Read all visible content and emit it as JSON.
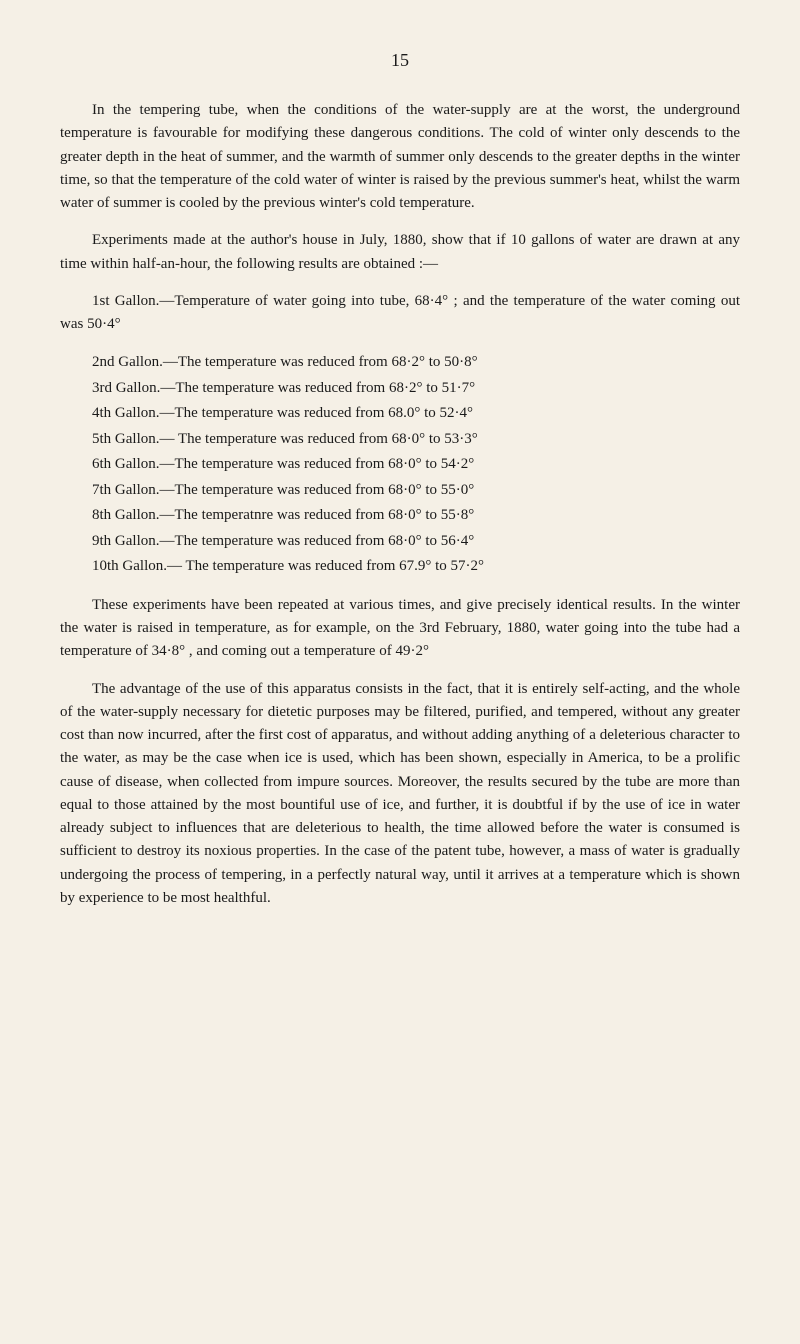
{
  "page_number": "15",
  "para1": "In the tempering tube, when the conditions of the water-supply are at the worst, the underground temperature is favourable for modifying these dangerous conditions. The cold of winter only descends to the greater depth in the heat of summer, and the warmth of summer only descends to the greater depths in the winter time, so that the tempera­ture of the cold water of winter is raised by the previous summer's heat, whilst the warm water of summer is cooled by the previous winter's cold temperature.",
  "para2": "Experiments made at the author's house in July, 1880, show that if 10 gallons of water are drawn at any time within half-an-hour, the following results are obtained :—",
  "para3": "1st Gallon.—Temperature of water going into tube, 68·4° ; and the temperature of the water coming out was 50·4°",
  "gallons": [
    "2nd Gallon.—The temperature was reduced from 68·2° to 50·8°",
    "3rd Gallon.—The temperature was reduced from 68·2° to 51·7°",
    "4th Gallon.—The temperature was reduced from 68.0° to 52·4°",
    "5th Gallon.— The temperature was reduced from 68·0° to 53·3°",
    "6th Gallon.—The temperature was reduced from 68·0° to 54·2°",
    "7th Gallon.—The temperature was reduced from 68·0° to 55·0°",
    "8th Gallon.—The temperatnre was reduced from 68·0° to 55·8°",
    "9th Gallon.—The temperature was reduced from 68·0° to 56·4°",
    "10th Gallon.— The temperature was reduced from 67.9° to 57·2°"
  ],
  "para4": "These experiments have been repeated at various times, and give precisely identical results. In the winter the water is raised in temperature, as for example, on the 3rd February, 1880, water going into the tube had a temperature of 34·8° , and coming out a temperature of 49·2°",
  "para5": "The advantage of the use of this apparatus consists in the fact, that it is entirely self-acting, and the whole of the water-supply necessary for dietetic purposes may be filtered, purified, and tempered, without any greater cost than now incurred, after the first cost of apparatus, and without adding anything of a deleterious character to the water, as may be the case when ice is used, which has been shown, especially in America, to be a prolific cause of disease, when collected from impure sources. Moreover, the results secured by the tube are more than equal to those attained by the most bountiful use of ice, and further, it is doubtful if by the use of ice in water already subject to influences that are deleterious to health, the time allowed before the water is consumed is sufficient to destroy its noxious properties. In the case of the patent tube, however, a mass of water is gradually undergoing the process of tempering, in a perfectly natural way, until it arrives at a temperature which is shown by experience to be most healthful."
}
